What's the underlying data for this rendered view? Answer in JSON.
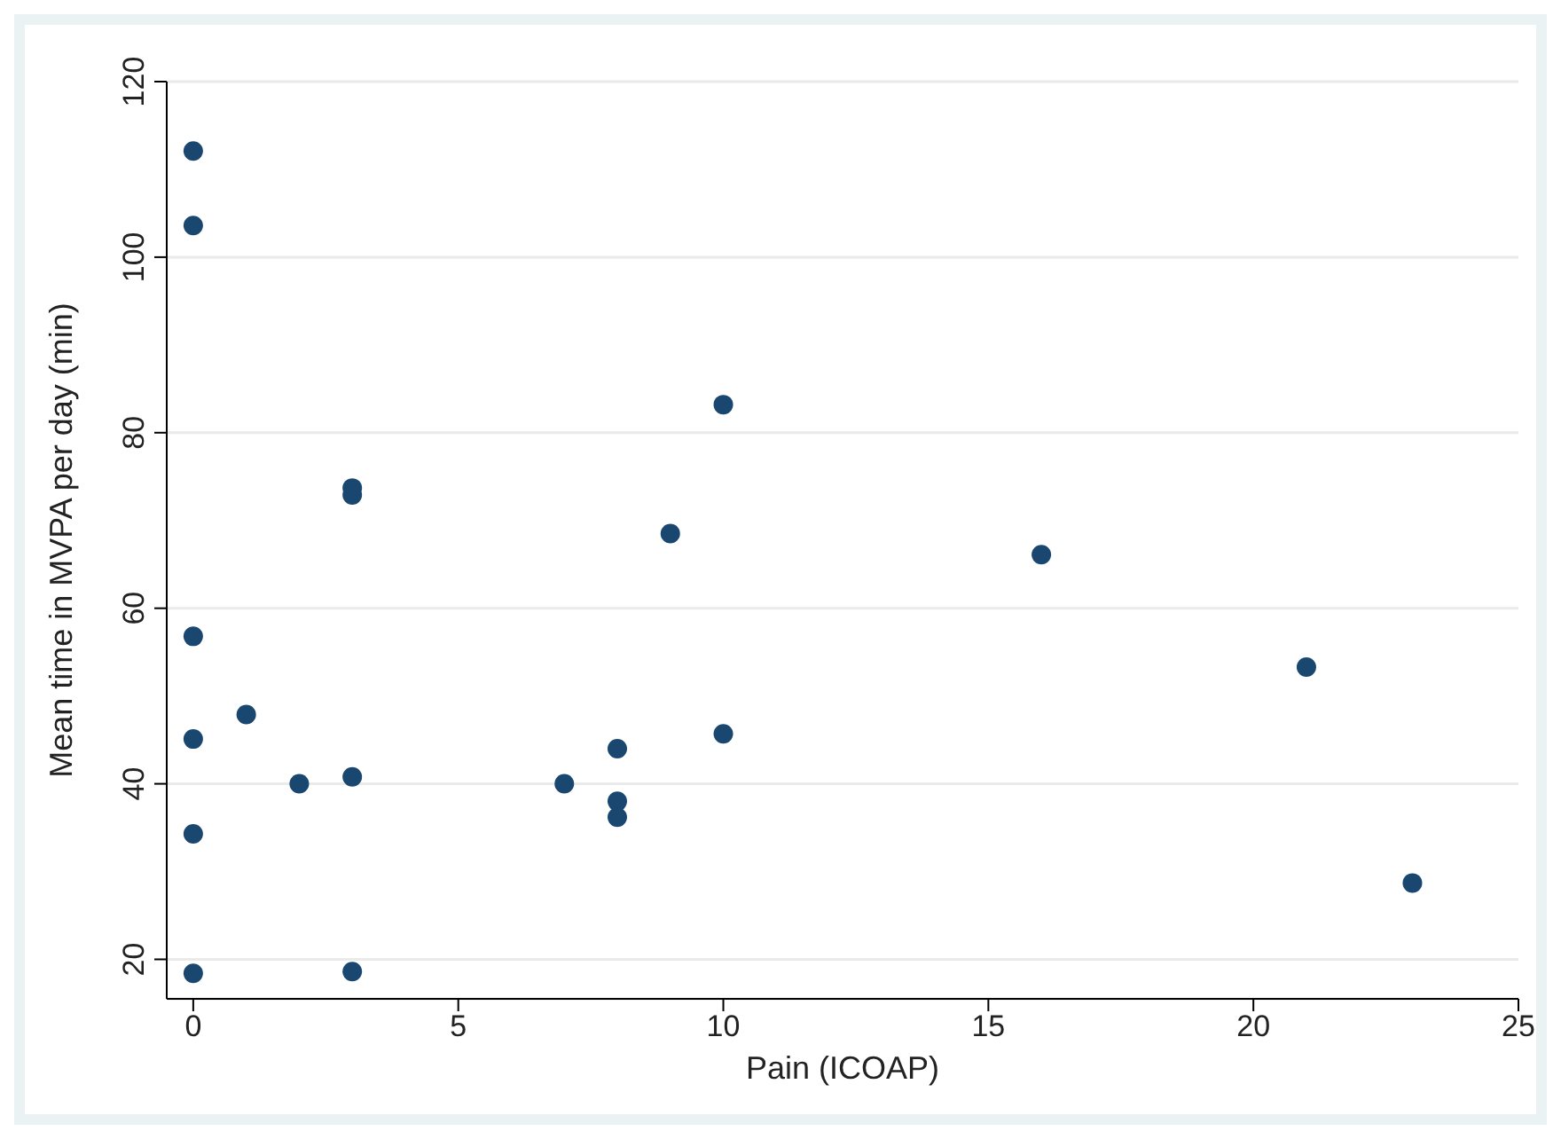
{
  "chart_data": {
    "type": "scatter",
    "xlabel": "Pain (ICOAP)",
    "ylabel": "Mean time in MVPA per day (min)",
    "x": [
      0,
      0,
      0,
      0,
      0,
      0,
      1,
      2,
      3,
      3,
      3,
      3,
      7,
      8,
      8,
      8,
      9,
      10,
      10,
      16,
      21,
      23
    ],
    "series": [
      {
        "color": "#1a476f",
        "values": [
          112.1,
          103.6,
          56.8,
          45.1,
          34.3,
          18.4,
          47.9,
          40,
          73.7,
          72.9,
          40.8,
          18.6,
          40,
          44,
          38,
          36.2,
          68.5,
          83.2,
          45.7,
          66.1,
          53.3,
          28.7
        ]
      }
    ],
    "xlim": [
      -0.5,
      25
    ],
    "xticks": [
      0,
      5,
      10,
      15,
      20,
      25
    ],
    "ylim": [
      15.5,
      120
    ],
    "yticks": [
      20,
      40,
      60,
      80,
      100,
      120
    ],
    "grid": "y",
    "legend": false,
    "marker": "circle"
  }
}
